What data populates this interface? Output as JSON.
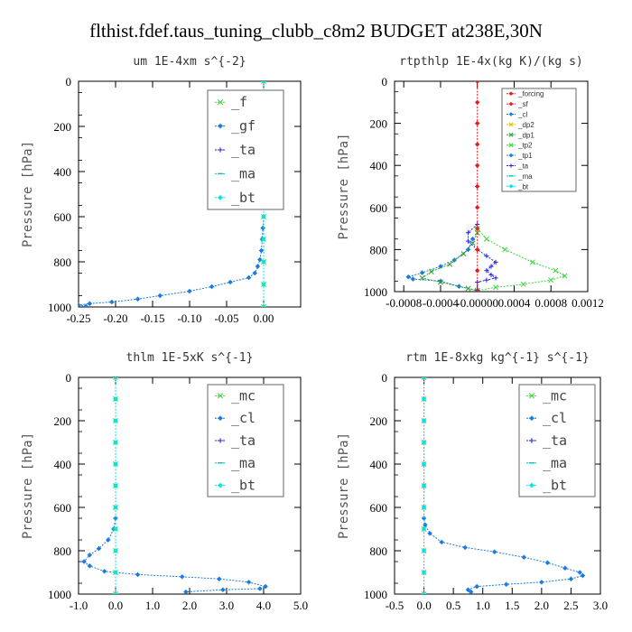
{
  "figure": {
    "title": "flthist.fdef.taus_tuning_clubb_c8m2  BUDGET at238E,30N"
  },
  "chart_data": [
    {
      "type": "line",
      "title": "um   1E-4xm s^{-2}",
      "ylabel": "Pressure [hPa]",
      "xlim": [
        -0.25,
        0.05
      ],
      "ylim": [
        1000,
        0
      ],
      "x_ticks": [
        "-0.25",
        "-0.20",
        "-0.15",
        "-0.10",
        "-0.05",
        "0.00"
      ],
      "x_tick_values": [
        -0.25,
        -0.2,
        -0.15,
        -0.1,
        -0.05,
        0.0
      ],
      "y_ticks": [
        "0",
        "200",
        "400",
        "600",
        "800",
        "1000"
      ],
      "y_tick_values": [
        0,
        200,
        400,
        600,
        800,
        1000
      ],
      "legend_style": "big",
      "legend": [
        "_f",
        "_gf",
        "_ta",
        "_ma",
        "_bt"
      ],
      "series": [
        {
          "name": "_gf",
          "color": "#1a7be0",
          "marker": "star",
          "points": [
            [
              0.0,
              0
            ],
            [
              0.0,
              50
            ],
            [
              0.0,
              100
            ],
            [
              0.0,
              150
            ],
            [
              0.0,
              200
            ],
            [
              0.0,
              250
            ],
            [
              0.0,
              300
            ],
            [
              0.0,
              350
            ],
            [
              0.0,
              400
            ],
            [
              0.0,
              450
            ],
            [
              0.0,
              500
            ],
            [
              0.0,
              550
            ],
            [
              0.0,
              600
            ],
            [
              -0.001,
              650
            ],
            [
              -0.002,
              700
            ],
            [
              -0.003,
              750
            ],
            [
              -0.005,
              790
            ],
            [
              -0.008,
              820
            ],
            [
              -0.012,
              850
            ],
            [
              -0.02,
              870
            ],
            [
              -0.045,
              890
            ],
            [
              -0.07,
              910
            ],
            [
              -0.1,
              930
            ],
            [
              -0.14,
              950
            ],
            [
              -0.17,
              965
            ],
            [
              -0.205,
              978
            ],
            [
              -0.235,
              985
            ],
            [
              -0.25,
              992
            ],
            [
              -0.24,
              997
            ]
          ]
        },
        {
          "name": "_f",
          "color": "#3ad63a",
          "marker": "x",
          "points": [
            [
              0.0,
              0
            ],
            [
              0.0,
              100
            ],
            [
              0.0,
              200
            ],
            [
              0.0,
              300
            ],
            [
              0.0,
              400
            ],
            [
              0.0,
              500
            ],
            [
              0.0,
              600
            ],
            [
              0.0,
              700
            ],
            [
              0.0,
              800
            ],
            [
              0.0,
              900
            ],
            [
              0.0,
              1000
            ]
          ]
        },
        {
          "name": "_bt",
          "color": "#00e5e5",
          "marker": "star",
          "points": [
            [
              0.0,
              0
            ],
            [
              0.0,
              100
            ],
            [
              0.0,
              200
            ],
            [
              0.0,
              300
            ],
            [
              0.0,
              400
            ],
            [
              0.0,
              500
            ],
            [
              0.0,
              600
            ],
            [
              0.0,
              700
            ],
            [
              0.0,
              800
            ],
            [
              0.0,
              900
            ],
            [
              0.0,
              1000
            ]
          ]
        }
      ]
    },
    {
      "type": "line",
      "title": "rtpthlp   1E-4x(kg K)/(kg s)",
      "ylabel": "Pressure [hPa]",
      "xlim": [
        -0.0009,
        0.0012
      ],
      "ylim": [
        1000,
        0
      ],
      "x_ticks": [
        "-0.0008",
        "-0.0004",
        "-0.00000",
        "0.0004",
        "0.0008",
        "0.0012"
      ],
      "x_tick_values": [
        -0.0008,
        -0.0004,
        0.0,
        0.0004,
        0.0008,
        0.0012
      ],
      "y_ticks": [
        "0",
        "200",
        "400",
        "600",
        "800",
        "1000"
      ],
      "y_tick_values": [
        0,
        200,
        400,
        600,
        800,
        1000
      ],
      "legend_style": "small",
      "legend": [
        "_forcing",
        "_sf",
        "_cl",
        "_dp2",
        "_dp1",
        "_tp2",
        "_tp1",
        "_ta",
        "_ma",
        "_bt"
      ],
      "series": [
        {
          "name": "_tp2",
          "color": "#3ad63a",
          "marker": "x",
          "points": [
            [
              0.0,
              700
            ],
            [
              0.0001,
              750
            ],
            [
              0.0003,
              800
            ],
            [
              0.0006,
              860
            ],
            [
              0.00085,
              900
            ],
            [
              0.00095,
              925
            ],
            [
              0.0008,
              945
            ],
            [
              0.0005,
              965
            ],
            [
              0.0002,
              980
            ],
            [
              0.0,
              995
            ]
          ]
        },
        {
          "name": "_tp1",
          "color": "#1a7be0",
          "marker": "star",
          "points": [
            [
              -5e-05,
              750
            ],
            [
              -0.0001,
              800
            ],
            [
              -0.00025,
              850
            ],
            [
              -0.0004,
              880
            ],
            [
              -0.0006,
              910
            ],
            [
              -0.00075,
              930
            ],
            [
              -0.0007,
              940
            ],
            [
              -0.0004,
              950
            ],
            [
              -0.0002,
              975
            ],
            [
              0.0,
              995
            ]
          ]
        },
        {
          "name": "_dp1",
          "color": "#2e9e2e",
          "marker": "x",
          "points": [
            [
              0.0,
              720
            ],
            [
              -5e-05,
              770
            ],
            [
              -0.00015,
              820
            ],
            [
              -0.0003,
              870
            ],
            [
              -0.0005,
              905
            ],
            [
              -0.0006,
              935
            ],
            [
              -0.0004,
              955
            ],
            [
              -0.0001,
              985
            ],
            [
              0.0,
              995
            ]
          ]
        },
        {
          "name": "_ta",
          "color": "#2222dd",
          "marker": "plus",
          "points": [
            [
              0.0,
              680
            ],
            [
              -0.0001,
              720
            ],
            [
              -0.0001,
              760
            ],
            [
              0.0,
              800
            ],
            [
              0.0001,
              830
            ],
            [
              0.0002,
              860
            ],
            [
              0.00015,
              880
            ],
            [
              0.0001,
              900
            ],
            [
              0.00015,
              920
            ],
            [
              0.0002,
              935
            ],
            [
              0.0001,
              945
            ],
            [
              0.0,
              955
            ],
            [
              0.0,
              995
            ]
          ]
        },
        {
          "name": "_forcing",
          "color": "#e02020",
          "marker": "star",
          "points": [
            [
              0.0,
              0
            ],
            [
              0.0,
              100
            ],
            [
              0.0,
              200
            ],
            [
              0.0,
              300
            ],
            [
              0.0,
              400
            ],
            [
              0.0,
              500
            ],
            [
              0.0,
              600
            ],
            [
              0.0,
              700
            ],
            [
              0.0,
              800
            ],
            [
              0.0,
              900
            ],
            [
              0.0,
              1000
            ]
          ]
        }
      ]
    },
    {
      "type": "line",
      "title": "thlm   1E-5xK s^{-1}",
      "ylabel": "Pressure [hPa]",
      "xlim": [
        -1.0,
        5.0
      ],
      "ylim": [
        1000,
        0
      ],
      "x_ticks": [
        "-1.0",
        "0.0",
        "1.0",
        "2.0",
        "3.0",
        "4.0",
        "5.0"
      ],
      "x_tick_values": [
        -1.0,
        0.0,
        1.0,
        2.0,
        3.0,
        4.0,
        5.0
      ],
      "y_ticks": [
        "0",
        "200",
        "400",
        "600",
        "800",
        "1000"
      ],
      "y_tick_values": [
        0,
        200,
        400,
        600,
        800,
        1000
      ],
      "legend_style": "big",
      "legend": [
        "_mc",
        "_cl",
        "_ta",
        "_ma",
        "_bt"
      ],
      "series": [
        {
          "name": "_cl",
          "color": "#1a7be0",
          "marker": "star",
          "points": [
            [
              0.0,
              0
            ],
            [
              0.0,
              100
            ],
            [
              0.0,
              200
            ],
            [
              0.0,
              300
            ],
            [
              0.0,
              400
            ],
            [
              0.0,
              500
            ],
            [
              0.0,
              600
            ],
            [
              0.0,
              650
            ],
            [
              -0.05,
              700
            ],
            [
              -0.2,
              750
            ],
            [
              -0.45,
              790
            ],
            [
              -0.7,
              820
            ],
            [
              -0.85,
              850
            ],
            [
              -0.7,
              870
            ],
            [
              -0.3,
              895
            ],
            [
              0.6,
              910
            ],
            [
              1.8,
              920
            ],
            [
              2.8,
              930
            ],
            [
              3.6,
              945
            ],
            [
              4.05,
              965
            ],
            [
              3.9,
              975
            ],
            [
              2.9,
              980
            ],
            [
              1.9,
              990
            ]
          ]
        },
        {
          "name": "_mc",
          "color": "#3ad63a",
          "marker": "x",
          "points": [
            [
              0.0,
              0
            ],
            [
              0.0,
              100
            ],
            [
              0.0,
              200
            ],
            [
              0.0,
              300
            ],
            [
              0.0,
              400
            ],
            [
              0.0,
              500
            ],
            [
              0.0,
              600
            ],
            [
              0.0,
              700
            ],
            [
              0.0,
              800
            ],
            [
              0.0,
              900
            ],
            [
              0.0,
              1000
            ]
          ]
        },
        {
          "name": "_bt",
          "color": "#00e5e5",
          "marker": "star",
          "points": [
            [
              0.0,
              0
            ],
            [
              0.0,
              100
            ],
            [
              0.0,
              200
            ],
            [
              0.0,
              300
            ],
            [
              0.0,
              400
            ],
            [
              0.0,
              500
            ],
            [
              0.0,
              600
            ],
            [
              0.0,
              700
            ],
            [
              0.0,
              800
            ],
            [
              0.0,
              900
            ],
            [
              0.0,
              1000
            ]
          ]
        }
      ]
    },
    {
      "type": "line",
      "title": "rtm   1E-8xkg kg^{-1} s^{-1}",
      "ylabel": "Pressure [hPa]",
      "xlim": [
        -0.5,
        3.0
      ],
      "ylim": [
        1000,
        0
      ],
      "x_ticks": [
        "-0.5",
        "0.0",
        "0.5",
        "1.0",
        "1.5",
        "2.0",
        "2.5",
        "3.0"
      ],
      "x_tick_values": [
        -0.5,
        0.0,
        0.5,
        1.0,
        1.5,
        2.0,
        2.5,
        3.0
      ],
      "y_ticks": [
        "0",
        "200",
        "400",
        "600",
        "800",
        "1000"
      ],
      "y_tick_values": [
        0,
        200,
        400,
        600,
        800,
        1000
      ],
      "legend_style": "big",
      "legend": [
        "_mc",
        "_cl",
        "_ta",
        "_ma",
        "_bt"
      ],
      "series": [
        {
          "name": "_cl",
          "color": "#1a7be0",
          "marker": "star",
          "points": [
            [
              0.0,
              0
            ],
            [
              0.0,
              100
            ],
            [
              0.0,
              200
            ],
            [
              0.0,
              300
            ],
            [
              0.0,
              400
            ],
            [
              0.0,
              500
            ],
            [
              0.0,
              600
            ],
            [
              0.0,
              650
            ],
            [
              0.02,
              680
            ],
            [
              0.1,
              720
            ],
            [
              0.3,
              760
            ],
            [
              0.7,
              785
            ],
            [
              1.2,
              805
            ],
            [
              1.7,
              830
            ],
            [
              2.1,
              855
            ],
            [
              2.4,
              880
            ],
            [
              2.65,
              900
            ],
            [
              2.7,
              915
            ],
            [
              2.5,
              930
            ],
            [
              2.0,
              945
            ],
            [
              1.4,
              955
            ],
            [
              0.9,
              965
            ],
            [
              0.75,
              980
            ],
            [
              0.8,
              990
            ]
          ]
        },
        {
          "name": "_mc",
          "color": "#3ad63a",
          "marker": "x",
          "points": [
            [
              0.0,
              0
            ],
            [
              0.0,
              100
            ],
            [
              0.0,
              200
            ],
            [
              0.0,
              300
            ],
            [
              0.0,
              400
            ],
            [
              0.0,
              500
            ],
            [
              0.0,
              600
            ],
            [
              0.0,
              700
            ],
            [
              0.0,
              800
            ],
            [
              0.0,
              900
            ],
            [
              0.0,
              1000
            ]
          ]
        },
        {
          "name": "_bt",
          "color": "#00e5e5",
          "marker": "star",
          "points": [
            [
              0.0,
              0
            ],
            [
              0.0,
              100
            ],
            [
              0.0,
              200
            ],
            [
              0.0,
              300
            ],
            [
              0.0,
              400
            ],
            [
              0.0,
              500
            ],
            [
              0.0,
              600
            ],
            [
              0.0,
              700
            ],
            [
              0.0,
              800
            ],
            [
              0.0,
              900
            ],
            [
              0.0,
              1000
            ]
          ]
        }
      ]
    }
  ],
  "legend_colors": {
    "_f": "#3ad63a",
    "_gf": "#1a7be0",
    "_ta": "#2222dd",
    "_ma": "#00bfbf",
    "_bt": "#00e5e5",
    "_mc": "#3ad63a",
    "_cl": "#1a7be0",
    "_forcing": "#e02020",
    "_sf": "#e02020",
    "_dp2": "#e0c000",
    "_dp1": "#2e9e2e",
    "_tp2": "#3ad63a",
    "_tp1": "#1a7be0"
  },
  "legend_markers": {
    "_f": "x",
    "_gf": "star",
    "_ta": "plus",
    "_ma": "dash",
    "_bt": "star",
    "_mc": "x",
    "_cl": "star",
    "_forcing": "star",
    "_sf": "star",
    "_dp2": "x",
    "_dp1": "x",
    "_tp2": "x",
    "_tp1": "star"
  }
}
